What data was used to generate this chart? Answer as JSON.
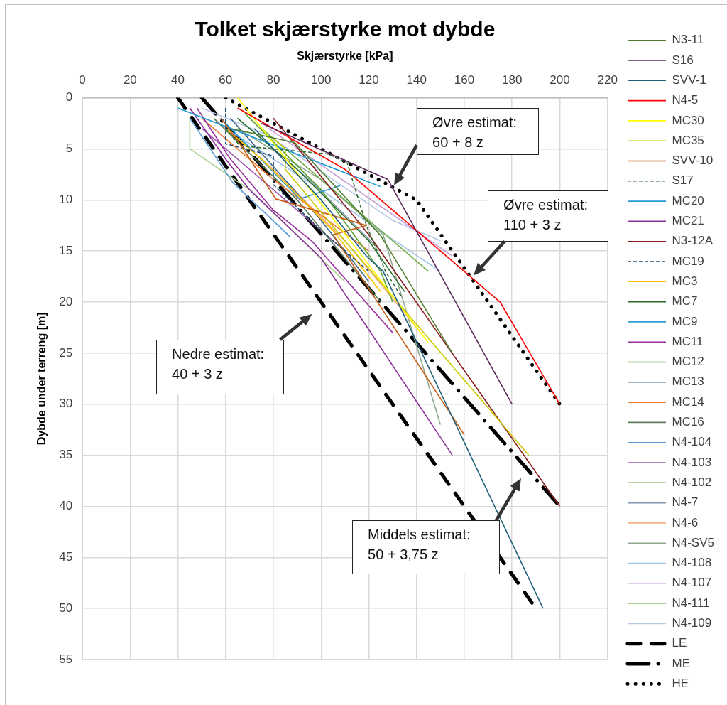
{
  "chart_data": {
    "type": "line",
    "title": "Tolket skjærstyrke mot dybde",
    "xlabel": "Skjærstyrke [kPa]",
    "ylabel": "Dybde under terreng [m]",
    "xlim": [
      0,
      220
    ],
    "xticks": [
      0,
      20,
      40,
      60,
      80,
      100,
      120,
      140,
      160,
      180,
      200,
      220
    ],
    "ylim": [
      55,
      0
    ],
    "yticks": [
      0,
      5,
      10,
      15,
      20,
      25,
      30,
      35,
      40,
      45,
      50,
      55
    ],
    "grid": true,
    "legend": "right",
    "series": [
      {
        "name": "N3-11",
        "color": "#4e7d2e",
        "x": [
          62,
          89,
          125,
          155
        ],
        "values": [
          3,
          4.4,
          13.5,
          25
        ]
      },
      {
        "name": "S16",
        "color": "#5c2a5c",
        "x": [
          75,
          128,
          180
        ],
        "values": [
          2.5,
          8,
          30
        ]
      },
      {
        "name": "SVV-1",
        "color": "#1f5f7a",
        "x": [
          72,
          100,
          119,
          126,
          193
        ],
        "values": [
          3,
          10,
          15.5,
          17,
          50
        ]
      },
      {
        "name": "N4-5",
        "color": "#ff0000",
        "x": [
          65,
          110,
          160,
          175,
          200
        ],
        "values": [
          1,
          7,
          17,
          20,
          30
        ]
      },
      {
        "name": "MC30",
        "color": "#ffff00",
        "x": [
          65,
          109,
          145
        ],
        "values": [
          0,
          13,
          24
        ]
      },
      {
        "name": "MC35",
        "color": "#c9c900",
        "x": [
          80,
          85,
          85,
          110,
          187
        ],
        "values": [
          4,
          5,
          7,
          14,
          35
        ]
      },
      {
        "name": "SVV-10",
        "color": "#c55a11",
        "x": [
          58,
          66,
          81,
          119,
          105,
          120,
          160
        ],
        "values": [
          2,
          4.5,
          9.9,
          12.5,
          13.4,
          18.7,
          33
        ]
      },
      {
        "name": "S17",
        "color": "#2e6b2e",
        "line_style": "dashed",
        "x": [
          60,
          66,
          103,
          111,
          119,
          127,
          134
        ],
        "values": [
          3,
          4.7,
          5.5,
          6.4,
          12.5,
          17,
          19.6
        ]
      },
      {
        "name": "MC20",
        "color": "#1e9ad6",
        "x": [
          40,
          125
        ],
        "values": [
          1,
          8.7
        ]
      },
      {
        "name": "MC21",
        "color": "#8b2d9b",
        "x": [
          45,
          60,
          70,
          100,
          155
        ],
        "values": [
          1,
          6,
          9,
          15.7,
          35
        ]
      },
      {
        "name": "N3-12A",
        "color": "#8b1c1c",
        "x": [
          80,
          120,
          200
        ],
        "values": [
          2,
          13.4,
          40
        ]
      },
      {
        "name": "MC19",
        "color": "#1f4e79",
        "line_style": "dashed",
        "x": [
          60,
          60,
          80,
          80,
          100,
          120
        ],
        "values": [
          1,
          4.5,
          5.7,
          8.5,
          13,
          17
        ]
      },
      {
        "name": "MC3",
        "color": "#ffc000",
        "x": [
          60,
          76,
          105,
          125
        ],
        "values": [
          3,
          6.2,
          13,
          19
        ]
      },
      {
        "name": "MC7",
        "color": "#2a6d2a",
        "x": [
          65,
          90,
          120,
          135
        ],
        "values": [
          2,
          7,
          14,
          19
        ]
      },
      {
        "name": "MC9",
        "color": "#2e9bd8",
        "x": [
          58,
          91,
          108
        ],
        "values": [
          2,
          9.9,
          8.6
        ]
      },
      {
        "name": "MC11",
        "color": "#9a2f9f",
        "x": [
          48,
          62,
          80,
          96,
          130
        ],
        "values": [
          1,
          6,
          11,
          14,
          23
        ]
      },
      {
        "name": "MC12",
        "color": "#5ea530",
        "x": [
          68,
          100,
          125,
          130
        ],
        "values": [
          1.5,
          9,
          17,
          20
        ]
      },
      {
        "name": "MC13",
        "color": "#44688a",
        "x": [
          62,
          100,
          120
        ],
        "values": [
          2,
          12,
          18
        ]
      },
      {
        "name": "MC14",
        "color": "#ed7d31",
        "x": [
          50,
          80,
          120
        ],
        "values": [
          2,
          8,
          15
        ]
      },
      {
        "name": "MC16",
        "color": "#5b7c5b",
        "x": [
          55,
          90,
          125
        ],
        "values": [
          2,
          10,
          20
        ]
      },
      {
        "name": "N4-104",
        "color": "#5b9bd5",
        "x": [
          45,
          63,
          87
        ],
        "values": [
          2,
          8.3,
          13.6
        ]
      },
      {
        "name": "N4-103",
        "color": "#a05aaf",
        "x": [
          50,
          85,
          110
        ],
        "values": [
          3,
          10,
          15
        ]
      },
      {
        "name": "N4-102",
        "color": "#70ad47",
        "x": [
          75,
          110,
          145
        ],
        "values": [
          3,
          10,
          17
        ]
      },
      {
        "name": "N4-7",
        "color": "#8497b0",
        "x": [
          70,
          95,
          125
        ],
        "values": [
          3,
          8,
          15
        ]
      },
      {
        "name": "N4-6",
        "color": "#f4b183",
        "x": [
          55,
          80,
          110,
          140
        ],
        "values": [
          2,
          7,
          14,
          22.5
        ]
      },
      {
        "name": "N4-SV5",
        "color": "#8fa88f",
        "x": [
          65,
          100,
          126,
          150
        ],
        "values": [
          3,
          8,
          13.4,
          32
        ]
      },
      {
        "name": "N4-108",
        "color": "#9dc3e6",
        "x": [
          60,
          100,
          127,
          150
        ],
        "values": [
          3,
          9,
          13.4,
          17
        ]
      },
      {
        "name": "N4-107",
        "color": "#c39bd3",
        "x": [
          78,
          155
        ],
        "values": [
          3,
          15.5
        ]
      },
      {
        "name": "N4-111",
        "color": "#a9d18e",
        "x": [
          45,
          45,
          70,
          110
        ],
        "values": [
          2,
          5,
          9,
          18
        ]
      },
      {
        "name": "N4-109",
        "color": "#b4c7e7",
        "x": [
          50,
          78,
          130,
          150
        ],
        "values": [
          1,
          3.7,
          12,
          14
        ]
      },
      {
        "name": "LE",
        "color": "#000000",
        "line_style": "dashed",
        "x": [
          40,
          190
        ],
        "values": [
          0,
          50
        ]
      },
      {
        "name": "ME",
        "color": "#000000",
        "line_style": "dashdot",
        "x": [
          50,
          200
        ],
        "values": [
          0,
          40
        ]
      },
      {
        "name": "HE",
        "color": "#000000",
        "line_style": "dotted",
        "x": [
          60,
          140,
          200
        ],
        "values": [
          0,
          10,
          30
        ]
      }
    ],
    "annotations": [
      "Øvre estimat:\n60 + 8 z",
      "Øvre estimat:\n110 + 3 z",
      "Nedre estimat:\n40 + 3 z",
      "Middels estimat:\n50 + 3,75 z"
    ]
  }
}
